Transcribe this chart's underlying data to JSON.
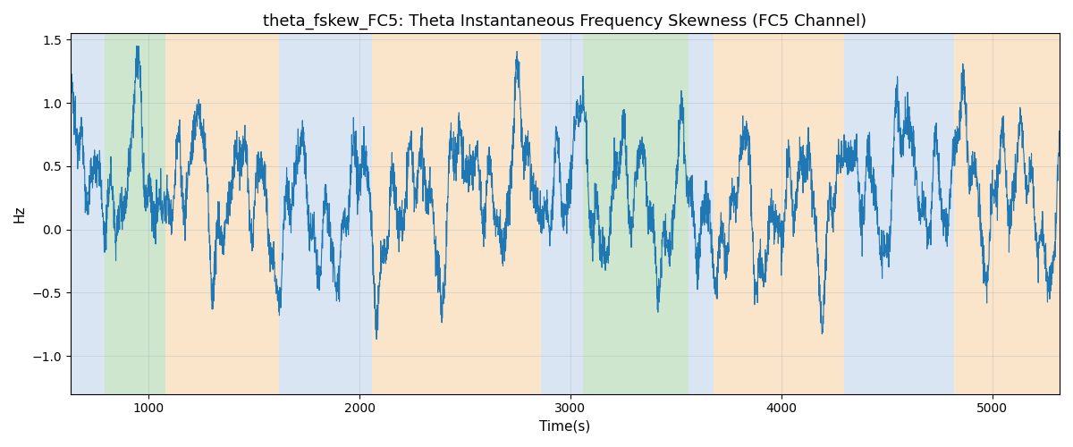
{
  "title": "theta_fskew_FC5: Theta Instantaneous Frequency Skewness (FC5 Channel)",
  "xlabel": "Time(s)",
  "ylabel": "Hz",
  "xlim": [
    630,
    5320
  ],
  "ylim": [
    -1.3,
    1.55
  ],
  "yticks": [
    -1.0,
    -0.5,
    0.0,
    0.5,
    1.0,
    1.5
  ],
  "xticks": [
    1000,
    2000,
    3000,
    4000,
    5000
  ],
  "bg_bands": [
    {
      "xstart": 630,
      "xend": 790,
      "color": "#aec6e8",
      "alpha": 0.45
    },
    {
      "xstart": 790,
      "xend": 1080,
      "color": "#90c990",
      "alpha": 0.45
    },
    {
      "xstart": 1080,
      "xend": 1620,
      "color": "#f5c68a",
      "alpha": 0.45
    },
    {
      "xstart": 1620,
      "xend": 2060,
      "color": "#aec6e8",
      "alpha": 0.45
    },
    {
      "xstart": 2060,
      "xend": 2860,
      "color": "#f5c68a",
      "alpha": 0.45
    },
    {
      "xstart": 2860,
      "xend": 3060,
      "color": "#aec6e8",
      "alpha": 0.45
    },
    {
      "xstart": 3060,
      "xend": 3560,
      "color": "#90c990",
      "alpha": 0.45
    },
    {
      "xstart": 3560,
      "xend": 3680,
      "color": "#aec6e8",
      "alpha": 0.45
    },
    {
      "xstart": 3680,
      "xend": 4300,
      "color": "#f5c68a",
      "alpha": 0.45
    },
    {
      "xstart": 4300,
      "xend": 4820,
      "color": "#aec6e8",
      "alpha": 0.45
    },
    {
      "xstart": 4820,
      "xend": 5320,
      "color": "#f5c68a",
      "alpha": 0.45
    }
  ],
  "line_color": "#1f77b4",
  "line_width": 0.8,
  "grid": true,
  "grid_color": "#b0b0b0",
  "grid_alpha": 0.5,
  "grid_linewidth": 0.5,
  "bg_color": "white",
  "seed": 12345,
  "n_points": 4500,
  "x_start": 630,
  "x_end": 5320
}
